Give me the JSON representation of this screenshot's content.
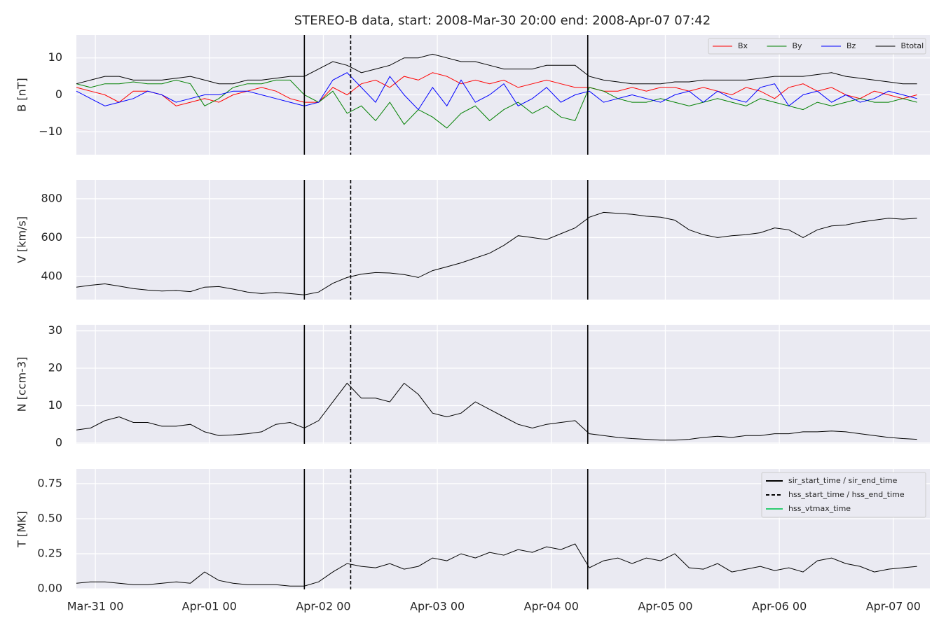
{
  "chart_data": {
    "type": "line",
    "title": "STEREO-B data, start: 2008-Mar-30 20:00  end: 2008-Apr-07 07:42",
    "x": [
      "Mar-30 20:00",
      "Mar-30 23:00",
      "Mar-31 02:00",
      "Mar-31 05:00",
      "Mar-31 08:00",
      "Mar-31 11:00",
      "Mar-31 14:00",
      "Mar-31 17:00",
      "Mar-31 20:00",
      "Mar-31 23:00",
      "Apr-01 02:00",
      "Apr-01 05:00",
      "Apr-01 08:00",
      "Apr-01 11:00",
      "Apr-01 14:00",
      "Apr-01 17:00",
      "Apr-01 20:00",
      "Apr-01 23:00",
      "Apr-02 02:00",
      "Apr-02 05:00",
      "Apr-02 08:00",
      "Apr-02 11:00",
      "Apr-02 14:00",
      "Apr-02 17:00",
      "Apr-02 20:00",
      "Apr-02 23:00",
      "Apr-03 02:00",
      "Apr-03 05:00",
      "Apr-03 08:00",
      "Apr-03 11:00",
      "Apr-03 14:00",
      "Apr-03 17:00",
      "Apr-03 20:00",
      "Apr-03 23:00",
      "Apr-04 02:00",
      "Apr-04 05:00",
      "Apr-04 08:00",
      "Apr-04 11:00",
      "Apr-04 14:00",
      "Apr-04 17:00",
      "Apr-04 20:00",
      "Apr-04 23:00",
      "Apr-05 02:00",
      "Apr-05 05:00",
      "Apr-05 08:00",
      "Apr-05 11:00",
      "Apr-05 14:00",
      "Apr-05 17:00",
      "Apr-05 20:00",
      "Apr-05 23:00",
      "Apr-06 02:00",
      "Apr-06 05:00",
      "Apr-06 08:00",
      "Apr-06 11:00",
      "Apr-06 14:00",
      "Apr-06 17:00",
      "Apr-06 20:00",
      "Apr-06 23:00",
      "Apr-07 02:00",
      "Apr-07 05:00"
    ],
    "xlim": [
      "Mar-30 20:00",
      "Apr-07 07:42"
    ],
    "xticks": [
      {
        "value": "Mar-31 00:00",
        "label": "Mar-31 00"
      },
      {
        "value": "Apr-01 00:00",
        "label": "Apr-01 00"
      },
      {
        "value": "Apr-02 00:00",
        "label": "Apr-02 00"
      },
      {
        "value": "Apr-03 00:00",
        "label": "Apr-03 00"
      },
      {
        "value": "Apr-04 00:00",
        "label": "Apr-04 00"
      },
      {
        "value": "Apr-05 00:00",
        "label": "Apr-05 00"
      },
      {
        "value": "Apr-06 00:00",
        "label": "Apr-06 00"
      },
      {
        "value": "Apr-07 00:00",
        "label": "Apr-07 00"
      }
    ],
    "grid": true,
    "events": [
      {
        "name": "sir_start_time / sir_end_time",
        "color": "#000000",
        "style": "solid",
        "times": [
          "Apr-01 20:00",
          "Apr-04 07:40"
        ]
      },
      {
        "name": "hss_start_time / hss_end_time",
        "color": "#000000",
        "style": "dashed",
        "times": [
          "Apr-02 05:45"
        ]
      },
      {
        "name": "hss_vtmax_time",
        "color": "#2ecc71",
        "style": "solid",
        "times": []
      }
    ],
    "panels": [
      {
        "ylabel": "B [nT]",
        "ylim": [
          -16.2,
          16.2
        ],
        "yticks": [
          {
            "value": -10,
            "label": "−10"
          },
          0,
          10
        ],
        "legend": "upper right",
        "series": [
          {
            "name": "Bx",
            "color": "#ff0000",
            "values": [
              2,
              1,
              0,
              -2,
              1,
              1,
              0,
              -3,
              -2,
              -1,
              -2,
              0,
              1,
              2,
              1,
              -1,
              -2,
              -2,
              2,
              0,
              3,
              4,
              2,
              5,
              4,
              6,
              5,
              3,
              4,
              3,
              4,
              2,
              3,
              4,
              3,
              2,
              2,
              1,
              1,
              2,
              1,
              2,
              2,
              1,
              2,
              1,
              0,
              2,
              1,
              -1,
              2,
              3,
              1,
              2,
              0,
              -1,
              1,
              0,
              -1,
              0
            ]
          },
          {
            "name": "By",
            "color": "#008000",
            "values": [
              3,
              2,
              3,
              3,
              3.5,
              3,
              3,
              4,
              3,
              -3,
              -1,
              2,
              3,
              3,
              4,
              4,
              0,
              -2,
              1,
              -5,
              -3,
              -7,
              -2,
              -8,
              -4,
              -6,
              -9,
              -5,
              -3,
              -7,
              -4,
              -2,
              -5,
              -3,
              -6,
              -7,
              2,
              1,
              -1,
              -2,
              -2,
              -1,
              -2,
              -3,
              -2,
              -1,
              -2,
              -3,
              -1,
              -2,
              -3,
              -4,
              -2,
              -3,
              -2,
              -1,
              -2,
              -2,
              -1,
              -2
            ]
          },
          {
            "name": "Bz",
            "color": "#0000ff",
            "values": [
              1,
              -1,
              -3,
              -2,
              -1,
              1,
              0,
              -2,
              -1,
              0,
              0,
              1,
              1,
              0,
              -1,
              -2,
              -3,
              -2,
              4,
              6,
              2,
              -2,
              5,
              0,
              -4,
              2,
              -3,
              4,
              -2,
              0,
              3,
              -3,
              -1,
              2,
              -2,
              0,
              1,
              -2,
              -1,
              0,
              -1,
              -2,
              0,
              1,
              -2,
              1,
              -1,
              -2,
              2,
              3,
              -3,
              0,
              1,
              -2,
              0,
              -2,
              -1,
              1,
              0,
              -1
            ]
          },
          {
            "name": "Btotal",
            "color": "#000000",
            "values": [
              3,
              4,
              5,
              5,
              4,
              4,
              4,
              4.5,
              5,
              4,
              3,
              3,
              4,
              4,
              4.5,
              5,
              5,
              7,
              9,
              8,
              6,
              7,
              8,
              10,
              10,
              11,
              10,
              9,
              9,
              8,
              7,
              7,
              7,
              8,
              8,
              8,
              5,
              4,
              3.5,
              3,
              3,
              3,
              3.5,
              3.5,
              4,
              4,
              4,
              4,
              4.5,
              5,
              5,
              5,
              5.5,
              6,
              5,
              4.5,
              4,
              3.5,
              3,
              3
            ]
          }
        ]
      },
      {
        "ylabel": "V [km/s]",
        "ylim": [
          281,
          897
        ],
        "yticks": [
          400,
          600,
          800
        ],
        "series": [
          {
            "color": "#000000",
            "values": [
              345,
              355,
              362,
              350,
              338,
              330,
              325,
              328,
              322,
              345,
              348,
              335,
              320,
              312,
              318,
              312,
              305,
              320,
              365,
              395,
              412,
              420,
              418,
              410,
              395,
              430,
              450,
              470,
              495,
              520,
              560,
              610,
              600,
              590,
              620,
              650,
              705,
              730,
              725,
              720,
              710,
              705,
              690,
              640,
              615,
              600,
              610,
              615,
              625,
              650,
              640,
              600,
              640,
              660,
              665,
              680,
              690,
              700,
              695,
              700
            ]
          }
        ]
      },
      {
        "ylabel": "N [ccm-3]",
        "ylim": [
          -0.2,
          31.6
        ],
        "yticks": [
          0,
          10,
          20,
          30
        ],
        "series": [
          {
            "color": "#000000",
            "values": [
              3.5,
              4,
              6,
              7,
              5.5,
              5.5,
              4.5,
              4.5,
              5,
              3,
              2,
              2.2,
              2.5,
              3,
              5,
              5.5,
              4,
              6,
              11,
              16,
              12,
              12,
              11,
              16,
              13,
              8,
              7,
              8,
              11,
              9,
              7,
              5,
              4,
              5,
              5.5,
              6,
              2.5,
              2,
              1.5,
              1.2,
              1,
              0.8,
              0.8,
              1,
              1.5,
              1.8,
              1.5,
              2,
              2,
              2.5,
              2.5,
              3,
              3,
              3.2,
              3,
              2.5,
              2,
              1.5,
              1.2,
              1
            ]
          }
        ]
      },
      {
        "ylabel": "T [MK]",
        "ylim": [
          -0.004,
          0.854
        ],
        "yticks": [
          {
            "value": 0,
            "label": "0.00"
          },
          {
            "value": 0.25,
            "label": "0.25"
          },
          {
            "value": 0.5,
            "label": "0.50"
          },
          {
            "value": 0.75,
            "label": "0.75"
          }
        ],
        "legend": "upper right",
        "series": [
          {
            "color": "#000000",
            "values": [
              0.04,
              0.05,
              0.05,
              0.04,
              0.03,
              0.03,
              0.04,
              0.05,
              0.04,
              0.12,
              0.06,
              0.04,
              0.03,
              0.03,
              0.03,
              0.02,
              0.02,
              0.05,
              0.12,
              0.18,
              0.16,
              0.15,
              0.18,
              0.14,
              0.16,
              0.22,
              0.2,
              0.25,
              0.22,
              0.26,
              0.24,
              0.28,
              0.26,
              0.3,
              0.28,
              0.32,
              0.15,
              0.2,
              0.22,
              0.18,
              0.22,
              0.2,
              0.25,
              0.15,
              0.14,
              0.18,
              0.12,
              0.14,
              0.16,
              0.13,
              0.15,
              0.12,
              0.2,
              0.22,
              0.18,
              0.16,
              0.12,
              0.14,
              0.15,
              0.16
            ]
          }
        ]
      }
    ]
  }
}
